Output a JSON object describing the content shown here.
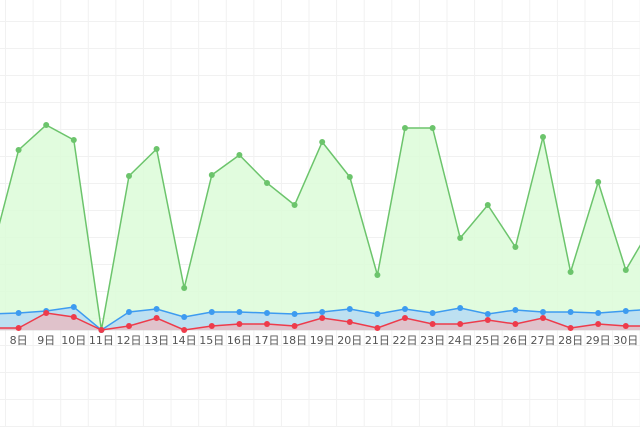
{
  "chart_data": {
    "type": "area",
    "categories": [
      null,
      "8日",
      "9日",
      "10日",
      "11日",
      "12日",
      "13日",
      "14日",
      "15日",
      "16日",
      "17日",
      "18日",
      "19日",
      "20日",
      "21日",
      "22日",
      "23日",
      "24日",
      "25日",
      "26日",
      "27日",
      "28日",
      "29日",
      "30日",
      null
    ],
    "series": [
      {
        "color": "#6cc46c",
        "fill": "#dcfbd8",
        "values": [
          74,
          180,
          205,
          190,
          0,
          154,
          181,
          42,
          155,
          175,
          147,
          125,
          188,
          153,
          55,
          202,
          202,
          92,
          125,
          83,
          193,
          58,
          148,
          60,
          107
        ]
      },
      {
        "color": "#3d9bf0",
        "fill": "#b6dbf5",
        "values": [
          16,
          17,
          19,
          23,
          0,
          18,
          21,
          13,
          18,
          18,
          17,
          16,
          18,
          21,
          16,
          21,
          17,
          22,
          16,
          20,
          18,
          18,
          17,
          19,
          21
        ]
      },
      {
        "color": "#ee3b4b",
        "fill": "#e6bcc4",
        "values": [
          2,
          2,
          17,
          13,
          0,
          4,
          12,
          0,
          4,
          6,
          6,
          4,
          12,
          8,
          2,
          12,
          6,
          6,
          10,
          6,
          12,
          2,
          6,
          4,
          4
        ]
      }
    ],
    "ylim": [
      0,
      330
    ]
  }
}
